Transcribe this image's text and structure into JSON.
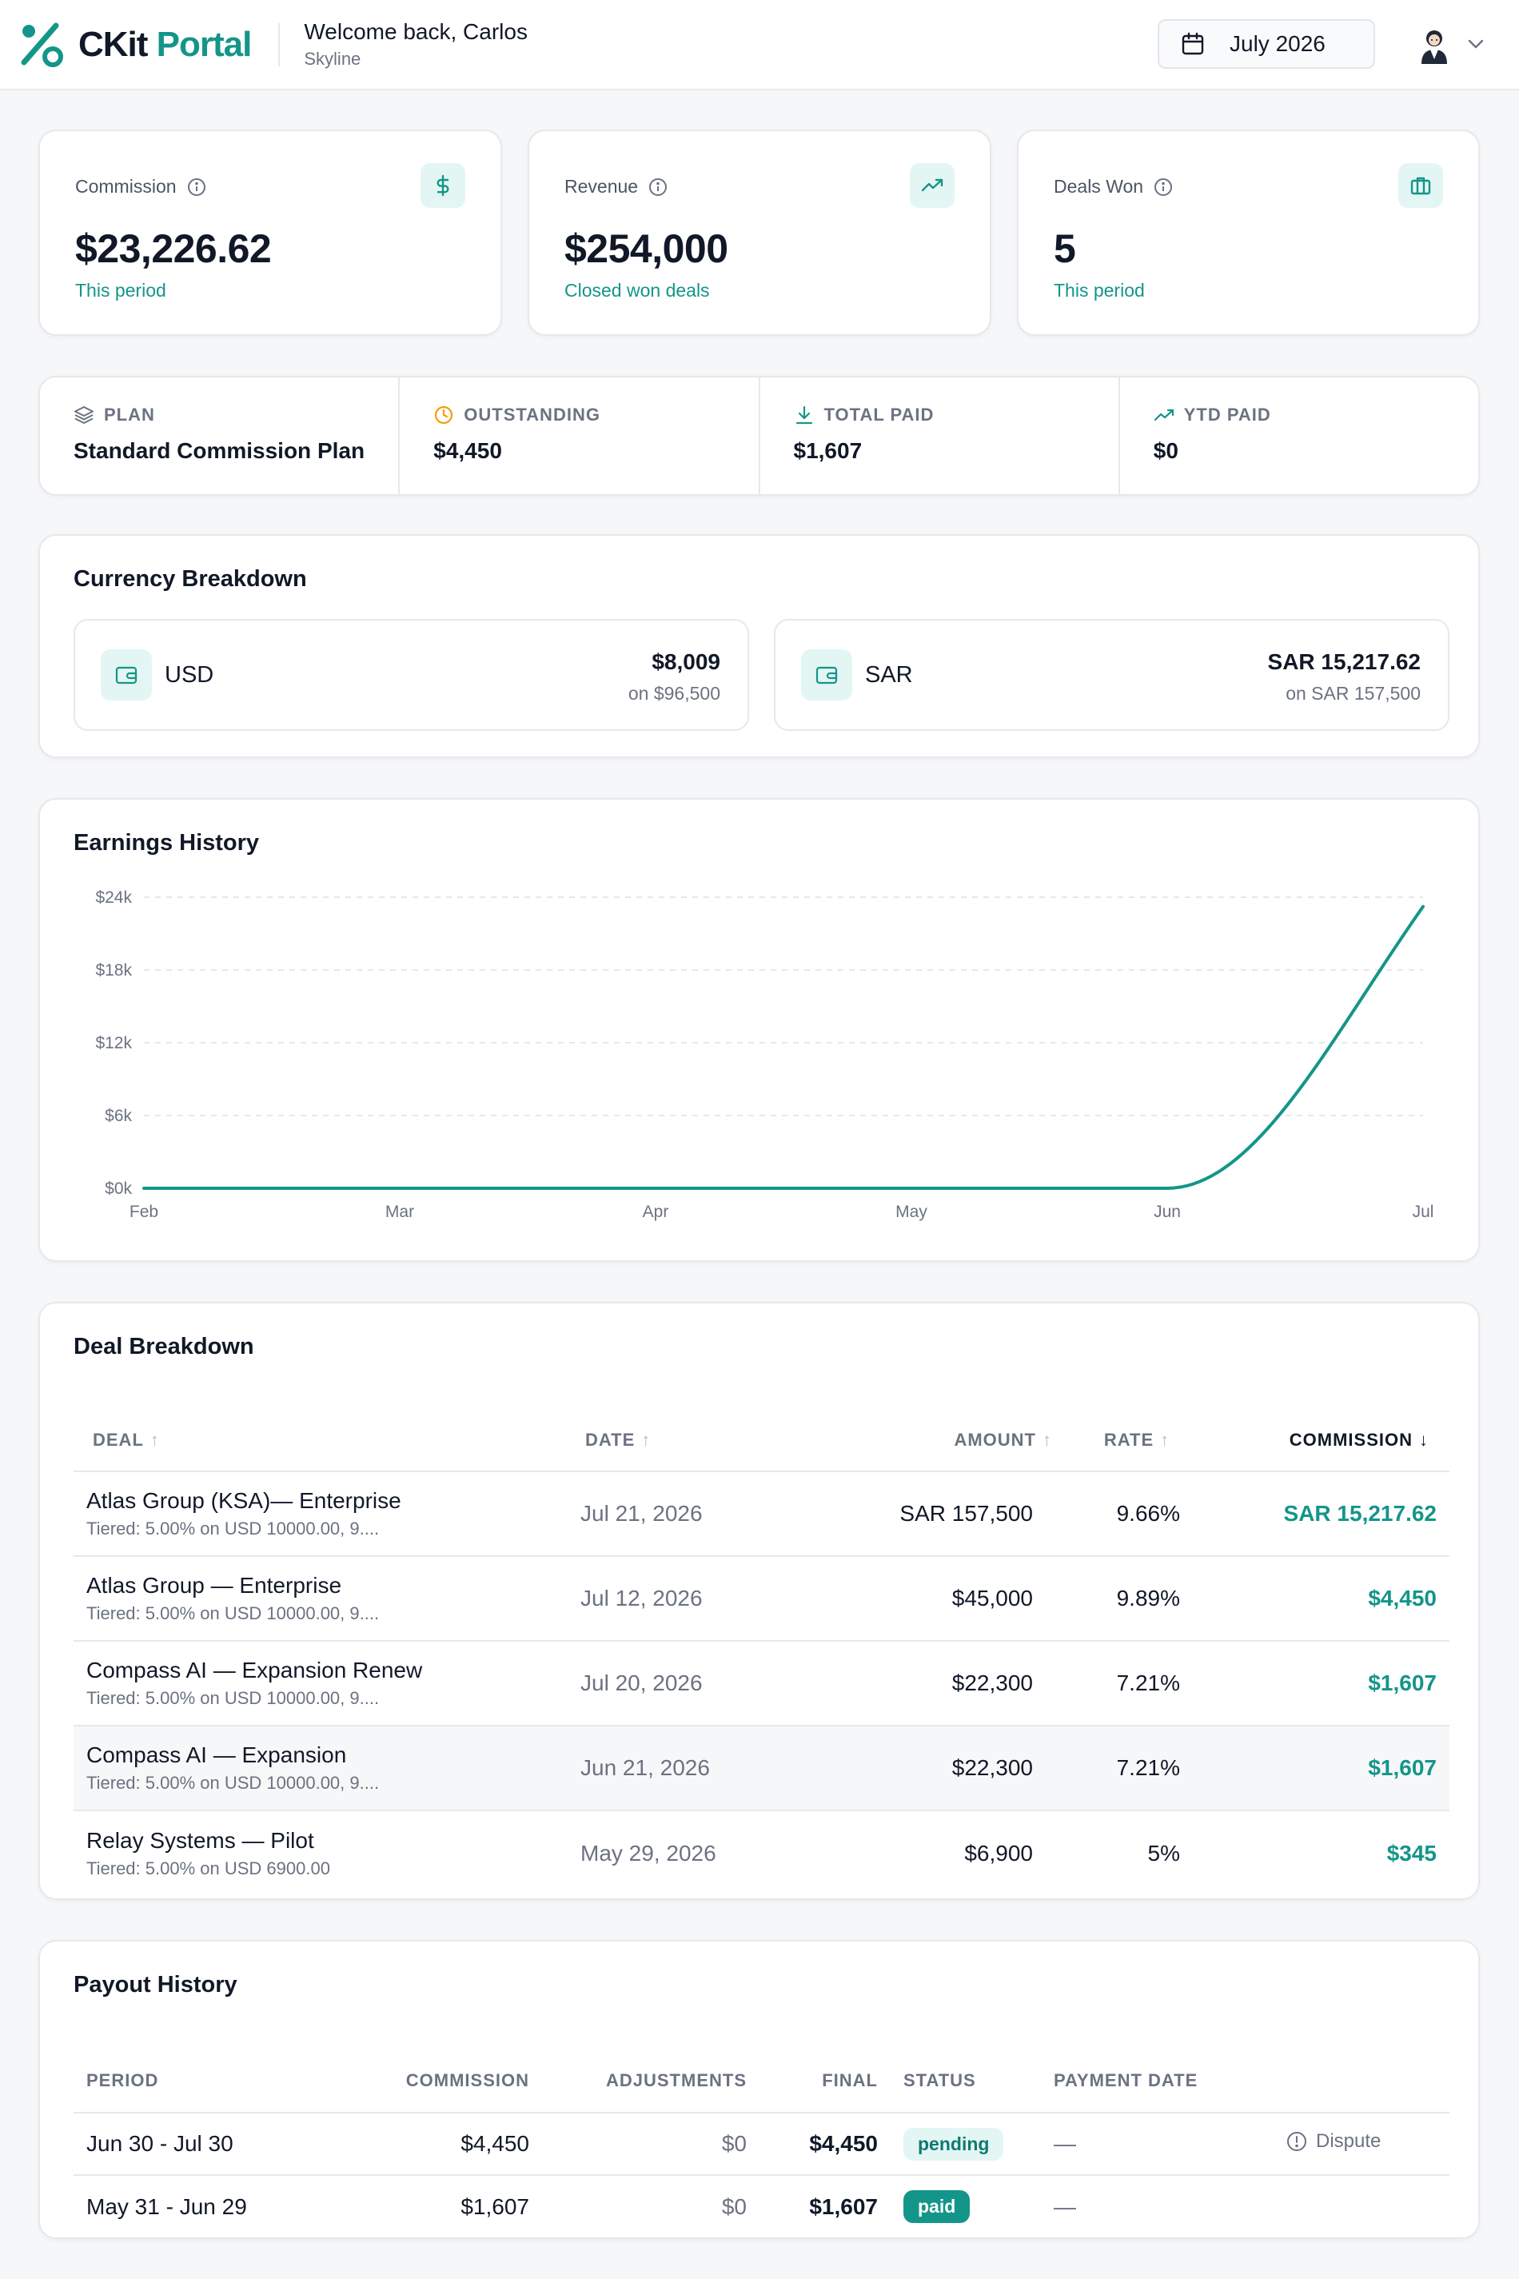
{
  "header": {
    "brand_part1": "CKit",
    "brand_part2": "Portal",
    "welcome": "Welcome back, Carlos",
    "company": "Skyline",
    "period": "July 2026"
  },
  "stats": [
    {
      "label": "Commission",
      "value": "$23,226.62",
      "sub": "This period",
      "icon": "dollar-icon"
    },
    {
      "label": "Revenue",
      "value": "$254,000",
      "sub": "Closed won deals",
      "icon": "trending-up-icon"
    },
    {
      "label": "Deals Won",
      "value": "5",
      "sub": "This period",
      "icon": "briefcase-icon"
    }
  ],
  "plan": {
    "plan_label": "PLAN",
    "plan_value": "Standard Commission Plan",
    "outstanding_label": "OUTSTANDING",
    "outstanding_value": "$4,450",
    "total_paid_label": "TOTAL PAID",
    "total_paid_value": "$1,607",
    "ytd_label": "YTD PAID",
    "ytd_value": "$0"
  },
  "currency": {
    "title": "Currency Breakdown",
    "items": [
      {
        "code": "USD",
        "amount": "$8,009",
        "on": "on $96,500"
      },
      {
        "code": "SAR",
        "amount": "SAR 15,217.62",
        "on": "on SAR 157,500"
      }
    ]
  },
  "earnings": {
    "title": "Earnings History"
  },
  "chart_data": {
    "type": "line",
    "title": "Earnings History",
    "x": [
      "Feb",
      "Mar",
      "Apr",
      "May",
      "Jun",
      "Jul"
    ],
    "series": [
      {
        "values": [
          0,
          0,
          0,
          0,
          0,
          23226.62
        ]
      }
    ],
    "yticks": [
      "$0k",
      "$6k",
      "$12k",
      "$18k",
      "$24k"
    ],
    "ylim": [
      0,
      24000
    ],
    "grid": true,
    "color": "#14958a"
  },
  "deals": {
    "title": "Deal Breakdown",
    "headers": {
      "deal": "DEAL",
      "date": "DATE",
      "amount": "AMOUNT",
      "rate": "RATE",
      "commission": "COMMISSION"
    },
    "rows": [
      {
        "name": "Atlas Group (KSA)— Enterprise",
        "tier": "Tiered: 5.00% on USD 10000.00, 9....",
        "date": "Jul 21, 2026",
        "amount": "SAR 157,500",
        "rate": "9.66%",
        "commission": "SAR 15,217.62"
      },
      {
        "name": "Atlas Group — Enterprise",
        "tier": "Tiered: 5.00% on USD 10000.00, 9....",
        "date": "Jul 12, 2026",
        "amount": "$45,000",
        "rate": "9.89%",
        "commission": "$4,450"
      },
      {
        "name": "Compass AI — Expansion Renew",
        "tier": "Tiered: 5.00% on USD 10000.00, 9....",
        "date": "Jul 20, 2026",
        "amount": "$22,300",
        "rate": "7.21%",
        "commission": "$1,607"
      },
      {
        "name": "Compass AI — Expansion",
        "tier": "Tiered: 5.00% on USD 10000.00, 9....",
        "date": "Jun 21, 2026",
        "amount": "$22,300",
        "rate": "7.21%",
        "commission": "$1,607"
      },
      {
        "name": "Relay Systems — Pilot",
        "tier": "Tiered: 5.00% on USD 6900.00",
        "date": "May 29, 2026",
        "amount": "$6,900",
        "rate": "5%",
        "commission": "$345"
      }
    ]
  },
  "payouts": {
    "title": "Payout History",
    "headers": {
      "period": "PERIOD",
      "commission": "COMMISSION",
      "adjustments": "ADJUSTMENTS",
      "final": "FINAL",
      "status": "STATUS",
      "payment_date": "PAYMENT DATE"
    },
    "rows": [
      {
        "period": "Jun 30 - Jul 30",
        "commission": "$4,450",
        "adjustments": "$0",
        "final": "$4,450",
        "status": "pending",
        "payment_date": "—",
        "action": "Dispute"
      },
      {
        "period": "May 31 - Jun 29",
        "commission": "$1,607",
        "adjustments": "$0",
        "final": "$1,607",
        "status": "paid",
        "payment_date": "—"
      }
    ]
  }
}
